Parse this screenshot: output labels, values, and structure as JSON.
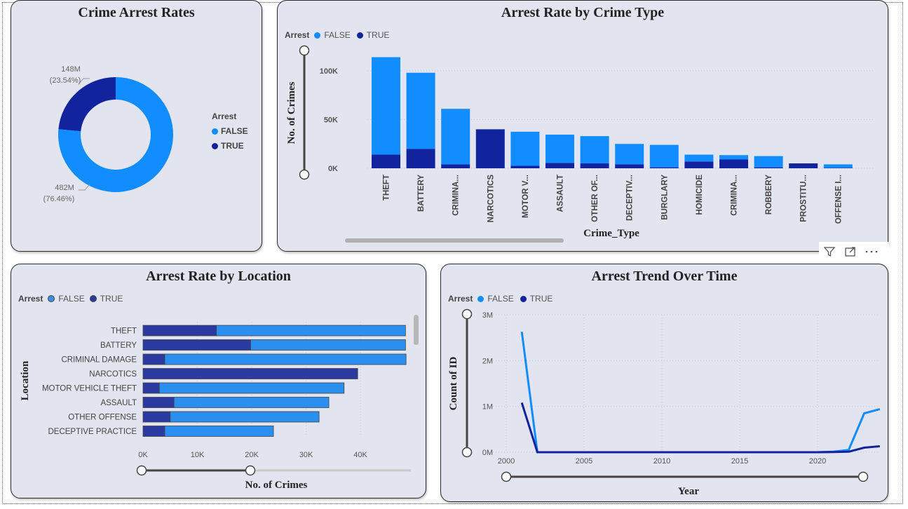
{
  "donut": {
    "title": "Crime Arrest Rates",
    "legend_title": "Arrest",
    "legend": [
      "FALSE",
      "TRUE"
    ],
    "true_label": "148M",
    "true_pct": "(23.54%)",
    "false_label": "482M",
    "false_pct": "(76.46%)"
  },
  "crime_type": {
    "title": "Arrest Rate by Crime Type",
    "legend_title": "Arrest",
    "legend": [
      "FALSE",
      "TRUE"
    ],
    "ylabel": "No. of Crimes",
    "xlabel": "Crime_Type",
    "yticks": [
      "100K",
      "50K",
      "0K"
    ]
  },
  "location": {
    "title": "Arrest Rate by Location",
    "legend_title": "Arrest",
    "legend": [
      "FALSE",
      "TRUE"
    ],
    "ylabel": "Location",
    "xlabel": "No. of Crimes",
    "xticks": [
      "0K",
      "10K",
      "20K",
      "30K",
      "40K"
    ]
  },
  "trend": {
    "title": "Arrest Trend Over Time",
    "legend_title": "Arrest",
    "legend": [
      "FALSE",
      "TRUE"
    ],
    "ylabel": "Count of ID",
    "xlabel": "Year",
    "yticks": [
      "3M",
      "2M",
      "1M",
      "0M"
    ],
    "xticks": [
      "2000",
      "2005",
      "2010",
      "2015",
      "2020"
    ]
  },
  "colors": {
    "false": "#118dff",
    "true": "#12239e",
    "card_bg": "#e2e4ef"
  },
  "toolbar": {
    "icons": [
      "filter-icon",
      "focus-mode-icon",
      "more-options-icon"
    ]
  },
  "chart_data": [
    {
      "type": "pie",
      "title": "Crime Arrest Rates",
      "categories": [
        "FALSE",
        "TRUE"
      ],
      "values": [
        482,
        148
      ],
      "unit": "M",
      "percentages": [
        76.46,
        23.54
      ],
      "legend": "right"
    },
    {
      "type": "bar",
      "title": "Arrest Rate by Crime Type",
      "xlabel": "Crime_Type",
      "ylabel": "No. of Crimes",
      "categories": [
        "THEFT",
        "BATTERY",
        "CRIMINA...",
        "NARCOTICS",
        "MOTOR V...",
        "ASSAULT",
        "OTHER OF...",
        "DECEPTIV...",
        "BURGLARY",
        "HOMICIDE",
        "CRIMINA...",
        "ROBBERY",
        "PROSTITU...",
        "OFFENSE I..."
      ],
      "series": [
        {
          "name": "TRUE",
          "values": [
            14000,
            20000,
            4000,
            40000,
            2500,
            5500,
            5000,
            4000,
            1000,
            7000,
            9000,
            1000,
            5000,
            500
          ]
        },
        {
          "name": "FALSE",
          "values": [
            100000,
            78000,
            57000,
            0,
            35000,
            29000,
            28000,
            21000,
            23000,
            7000,
            4500,
            11500,
            0,
            3500
          ]
        }
      ],
      "stacked": true,
      "ylim": [
        0,
        115000
      ],
      "legend": "top-left"
    },
    {
      "type": "bar",
      "orientation": "horizontal",
      "title": "Arrest Rate by Location",
      "xlabel": "No. of Crimes",
      "ylabel": "Location",
      "categories": [
        "THEFT",
        "BATTERY",
        "CRIMINAL DAMAGE",
        "NARCOTICS",
        "MOTOR VEHICLE THEFT",
        "ASSAULT",
        "OTHER OFFENSE",
        "DECEPTIVE PRACTICE"
      ],
      "series": [
        {
          "name": "TRUE",
          "values": [
            13500,
            19800,
            4000,
            39500,
            3000,
            5700,
            5000,
            4000
          ]
        },
        {
          "name": "FALSE",
          "values": [
            34800,
            28500,
            44400,
            0,
            34000,
            28500,
            27400,
            20000
          ]
        }
      ],
      "stacked": true,
      "xlim": [
        0,
        48300
      ],
      "legend": "top-left"
    },
    {
      "type": "line",
      "title": "Arrest Trend Over Time",
      "xlabel": "Year",
      "ylabel": "Count of ID",
      "x": [
        2001,
        2002,
        2003,
        2004,
        2005,
        2006,
        2007,
        2008,
        2009,
        2010,
        2011,
        2012,
        2013,
        2014,
        2015,
        2016,
        2017,
        2018,
        2019,
        2020,
        2021,
        2022,
        2023,
        2024
      ],
      "series": [
        {
          "name": "FALSE",
          "values": [
            2630000,
            0,
            0,
            0,
            0,
            0,
            0,
            0,
            0,
            0,
            0,
            0,
            0,
            0,
            0,
            0,
            0,
            0,
            0,
            0,
            10000,
            50000,
            850000,
            940000
          ]
        },
        {
          "name": "TRUE",
          "values": [
            1080000,
            0,
            0,
            0,
            0,
            0,
            0,
            0,
            0,
            0,
            0,
            0,
            0,
            0,
            0,
            0,
            0,
            0,
            0,
            0,
            5000,
            10000,
            100000,
            130000
          ]
        }
      ],
      "xlim": [
        2000,
        2024
      ],
      "ylim": [
        0,
        3000000
      ],
      "legend": "top-left"
    }
  ]
}
